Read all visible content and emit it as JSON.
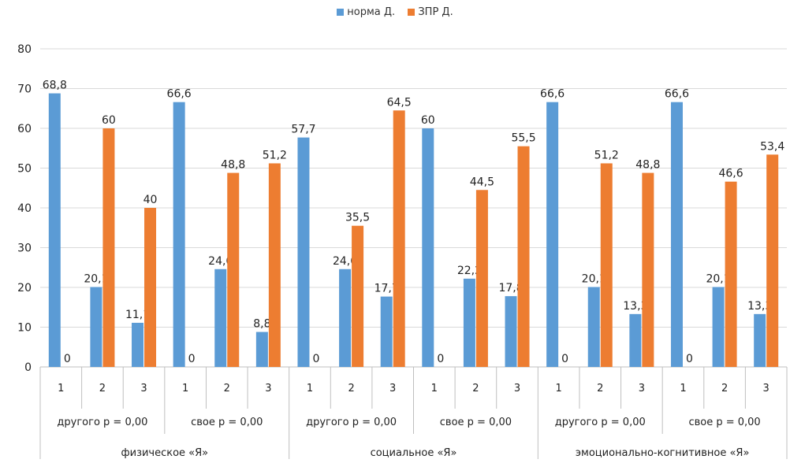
{
  "chart_data": {
    "type": "bar",
    "legend_position": "top",
    "grid": true,
    "ylim": [
      0,
      80
    ],
    "y_ticks": [
      "0",
      "10",
      "20",
      "30",
      "40",
      "50",
      "60",
      "70",
      "80"
    ],
    "categories": [
      "1",
      "2",
      "3",
      "1",
      "2",
      "3",
      "1",
      "2",
      "3",
      "1",
      "2",
      "3",
      "1",
      "2",
      "3",
      "1",
      "2",
      "3"
    ],
    "subgroups": [
      "другого р = 0,00",
      "свое р = 0,00",
      "другого р = 0,00",
      "свое р = 0,00",
      "другого р = 0,00",
      "свое р = 0,00"
    ],
    "groups": [
      "физическое «Я»",
      "социальное «Я»",
      "эмоционально-когнитивное «Я»"
    ],
    "series": [
      {
        "name": "норма Д.",
        "color": "#5b9bd5",
        "values": [
          68.8,
          20.1,
          11.1,
          66.6,
          24.6,
          8.8,
          57.7,
          24.6,
          17.7,
          60,
          22.2,
          17.8,
          66.6,
          20.1,
          13.3,
          66.6,
          20.1,
          13.3
        ],
        "labels": [
          "68,8",
          "20,1",
          "11,1",
          "66,6",
          "24,6",
          "8,8",
          "57,7",
          "24,6",
          "17,7",
          "60",
          "22,2",
          "17,8",
          "66,6",
          "20,1",
          "13,3",
          "66,6",
          "20,1",
          "13,3"
        ]
      },
      {
        "name": "ЗПР Д.",
        "color": "#ed7d31",
        "values": [
          0,
          60,
          40,
          0,
          48.8,
          51.2,
          0,
          35.5,
          64.5,
          0,
          44.5,
          55.5,
          0,
          51.2,
          48.8,
          0,
          46.6,
          53.4
        ],
        "labels": [
          "0",
          "60",
          "40",
          "0",
          "48,8",
          "51,2",
          "0",
          "35,5",
          "64,5",
          "0",
          "44,5",
          "55,5",
          "0",
          "51,2",
          "48,8",
          "0",
          "46,6",
          "53,4"
        ]
      }
    ]
  }
}
